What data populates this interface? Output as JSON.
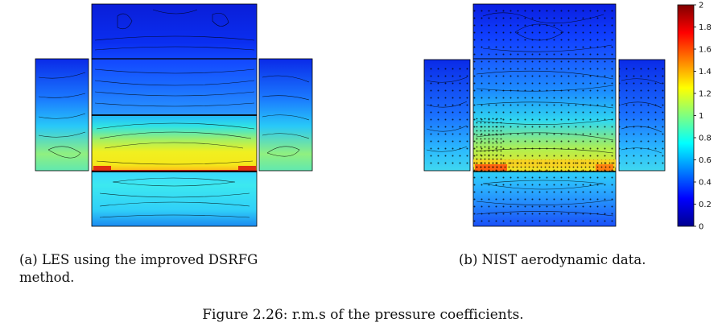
{
  "subfigures": [
    {
      "id": "a",
      "caption_line1": "(a) LES using the improved DSRFG",
      "caption_line2": "method."
    },
    {
      "id": "b",
      "caption_line1": "(b) NIST aerodynamic data."
    }
  ],
  "figure_caption": "Figure 2.26: r.m.s of the pressure coefficients.",
  "colorbar": {
    "colormap": "jet",
    "min": 0,
    "max": 2,
    "ticks": [
      "0",
      "0.2",
      "0.4",
      "0.6",
      "0.8",
      "1",
      "1.2",
      "1.4",
      "1.6",
      "1.8",
      "2"
    ]
  },
  "colors": {
    "low": "#00008f",
    "mid_low": "#0060ff",
    "mid": "#00ffff",
    "mid_high": "#ffff00",
    "high": "#ff3000",
    "max": "#800000"
  }
}
